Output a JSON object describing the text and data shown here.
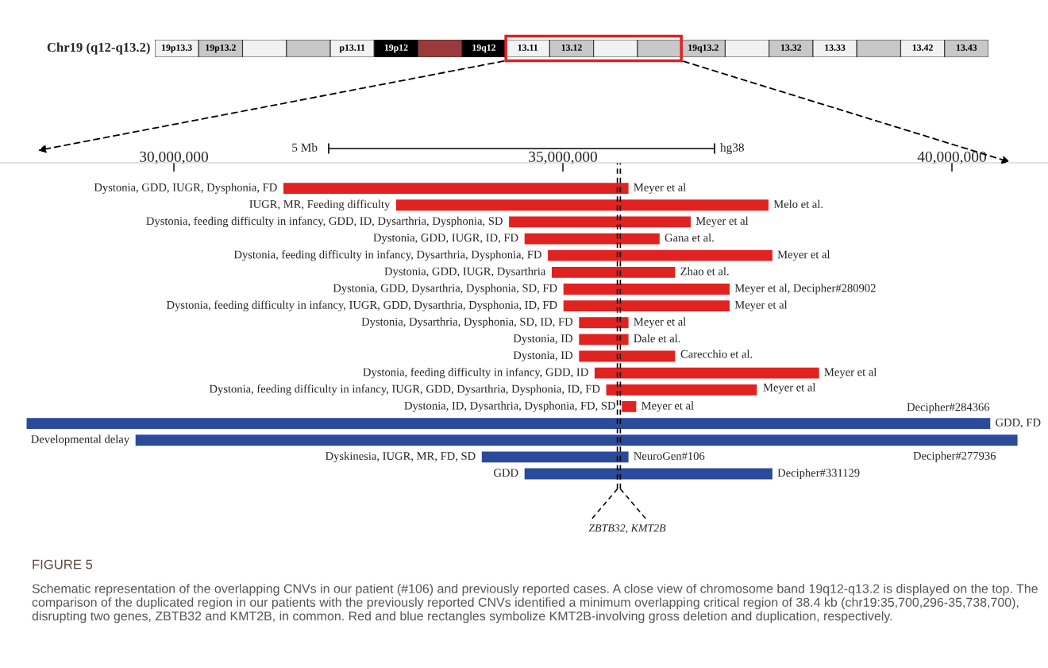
{
  "chart_data": [
    {
      "type": "bar",
      "orientation": "horizontal",
      "title": "FIGURE 5",
      "categories": [
        "Dystonia, GDD, IUGR, Dysphonia, FD",
        "IUGR, MR, Feeding difficulty",
        "Dystonia, feeding difficulty in infancy, GDD, ID, Dysarthria, Dysphonia, SD",
        "Dystonia, GDD, IUGR, ID, FD",
        "Dystonia, feeding difficulty in infancy, Dysarthria, Dysphonia, FD",
        "Dystonia, GDD, IUGR, Dysarthria",
        "Dystonia, GDD, Dysarthria, Dysphonia, SD, FD",
        "Dystonia, feeding difficulty in infancy, IUGR, GDD, Dysarthria, Dysphonia, ID, FD",
        "Dystonia, Dysarthria, Dysphonia, SD, ID, FD",
        "Dystonia, ID",
        "Dystonia, ID",
        "Dystonia, feeding difficulty in infancy, GDD, ID",
        "Dystonia, feeding difficulty in infancy, IUGR, GDD, Dysarthria, Dysphonia, ID, FD",
        "Dystonia, ID, Dysarthria, Dysphonia, FD, SD",
        "GDD, FD",
        "Developmental delay",
        "Dyskinesia, IUGR, MR, FD, SD",
        "GDD"
      ],
      "series": [
        {
          "color": "#e02320",
          "base": [
            31400000,
            32850000,
            34300000,
            34500000,
            34800000,
            34850000,
            35000000,
            35000000,
            35200000,
            35200000,
            35200000,
            35400000,
            35550000,
            35750000,
            null,
            null,
            null,
            null
          ],
          "values": [
            4450000,
            4800000,
            2350000,
            1750000,
            2900000,
            1600000,
            2150000,
            2150000,
            650000,
            650000,
            1250000,
            2900000,
            1950000,
            200000,
            null,
            null,
            null,
            null
          ]
        },
        {
          "color": "#2a4a9a",
          "base": [
            null,
            null,
            null,
            null,
            null,
            null,
            null,
            null,
            null,
            null,
            null,
            null,
            null,
            null,
            28100000,
            29500000,
            33950000,
            34500000
          ],
          "values": [
            null,
            null,
            null,
            null,
            null,
            null,
            null,
            null,
            null,
            null,
            null,
            null,
            null,
            null,
            12400000,
            11350000,
            1900000,
            3200000
          ]
        }
      ],
      "xlim": [
        27765000,
        41235000
      ],
      "xticks": [
        {
          "value": 30000000,
          "label": "30,000,000"
        },
        {
          "value": 35000000,
          "label": "35,000,000"
        },
        {
          "value": 40000000,
          "label": "40,000,000"
        }
      ],
      "tick_labels": "x",
      "ref_lines": [
        {
          "axis": "x",
          "value": 35700296,
          "color": "#000000",
          "line_style": "dashed"
        },
        {
          "axis": "x",
          "value": 35738700,
          "color": "#000000",
          "line_style": "dashed"
        }
      ],
      "annotations": [
        "5 Mb",
        "hg38",
        "ZBTB32, KMT2B",
        "Schematic representation of the overlapping CNVs in our patient (#106) and previously reported cases. A close view of chromosome band 19q12-q13.2 is displayed on the top. The comparison of the duplicated region in our patients with the previously reported CNVs identified a minimum overlapping critical region of 38.4 kb (chr19:35,700,296-35,738,700), disrupting two genes, ZBTB32 and KMT2B, in common. Red and blue rectangles symbolize KMT2B-involving gross deletion and duplication, respectively.",
        {
          "text": "Meyer et al",
          "x": 35850000,
          "y": "Dystonia, GDD, IUGR, Dysphonia, FD"
        },
        {
          "text": "Melo et al.",
          "x": 37650000,
          "y": "IUGR, MR, Feeding difficulty"
        },
        {
          "text": "Meyer et al",
          "x": 36650000,
          "y": "Dystonia, feeding difficulty in infancy, GDD, ID, Dysarthria, Dysphonia, SD"
        },
        {
          "text": "Gana et al.",
          "x": 36250000,
          "y": "Dystonia, GDD, IUGR, ID, FD"
        },
        {
          "text": "Meyer et al",
          "x": 37700000,
          "y": "Dystonia, feeding difficulty in infancy, Dysarthria, Dysphonia, FD"
        },
        {
          "text": "Zhao et al.",
          "x": 36450000,
          "y": "Dystonia, GDD, IUGR, Dysarthria"
        },
        {
          "text": "Meyer et al, Decipher#280902",
          "x": 37150000,
          "y": "Dystonia, GDD, Dysarthria, Dysphonia, SD, FD"
        },
        {
          "text": "Meyer et al",
          "x": 37150000,
          "y": "Dystonia, feeding difficulty in infancy, IUGR, GDD, Dysarthria, Dysphonia, ID, FD"
        },
        {
          "text": "Meyer et al",
          "x": 35850000,
          "y": "Dystonia, Dysarthria, Dysphonia, SD, ID, FD"
        },
        {
          "text": "Dale et al.",
          "x": 35850000,
          "y": "Dystonia, ID"
        },
        "Carecchio et al.",
        {
          "text": "Meyer et al",
          "x": 38300000,
          "y": "Dystonia, feeding difficulty in infancy, GDD, ID"
        },
        "Meyer et al",
        {
          "text": "Meyer et al",
          "x": 35950000,
          "y": "Dystonia, ID, Dysarthria, Dysphonia, FD, SD"
        },
        {
          "text": "Decipher#284366",
          "x": 40500000,
          "y": "GDD, FD"
        },
        {
          "text": "Decipher#277936",
          "x": 40850000,
          "y": "Developmental delay"
        },
        {
          "text": "NeuroGen#106",
          "x": 35850000,
          "y": "Dyskinesia, IUGR, MR, FD, SD"
        },
        {
          "text": "Decipher#331129",
          "x": 37700000,
          "y": "GDD"
        }
      ]
    },
    {
      "type": "other",
      "title": "Chr19 (q12-q13.2)",
      "categories": [
        "19p13.3",
        "19p13.2",
        null,
        null,
        "p13.11",
        "19p12",
        null,
        "19q12",
        "13.11",
        "13.12",
        null,
        null,
        "19q13.2",
        null,
        "13.32",
        "13.33",
        null,
        "13.42",
        "13.43"
      ],
      "colors": [
        "#f2f2f2",
        "#c8c8c8",
        "#f2f2f2",
        "#c8c8c8",
        "#f2f2f2",
        "#000000",
        "#9b3a3a",
        "#000000",
        "#f2f2f2",
        "#c8c8c8",
        "#f2f2f2",
        "#c8c8c8",
        "#c8c8c8",
        "#f2f2f2",
        "#c8c8c8",
        "#f2f2f2",
        "#c8c8c8",
        "#f2f2f2",
        "#c8c8c8"
      ]
    }
  ]
}
